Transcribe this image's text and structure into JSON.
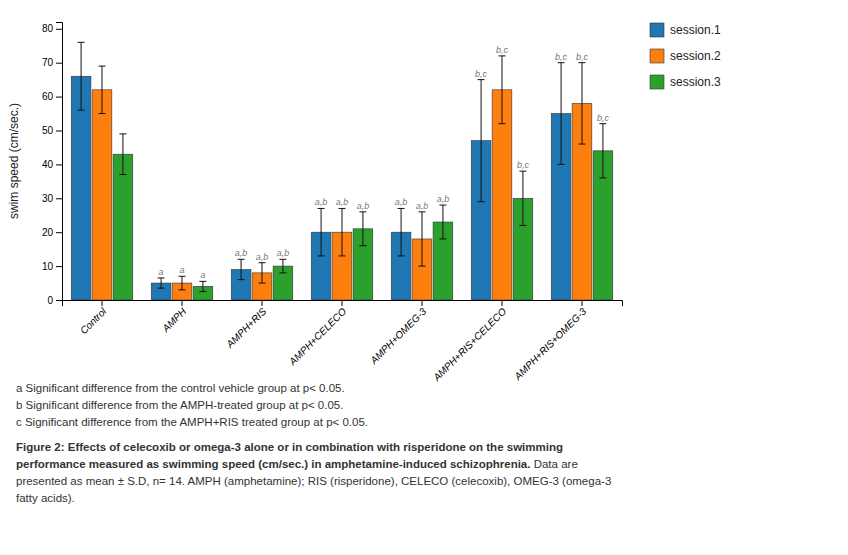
{
  "chart_data": {
    "type": "bar",
    "categories": [
      "Control",
      "AMPH",
      "AMPH+RIS",
      "AMPH+CELECO",
      "AMPH+OMEG-3",
      "AMPH+RIS+CELECO",
      "AMPH+RIS+OMEG-3"
    ],
    "ylabel": "swim speed (cm/sec.)",
    "ylim": [
      0,
      82
    ],
    "yticks": [
      0,
      10,
      20,
      30,
      40,
      50,
      60,
      70,
      80
    ],
    "series": [
      {
        "name": "session.1",
        "values": [
          66,
          5,
          9,
          20,
          20,
          47,
          55
        ],
        "errors": [
          10,
          1.5,
          3,
          7,
          7,
          18,
          15
        ],
        "annotations": [
          null,
          "a",
          "a,b",
          "a,b",
          "a,b",
          "b,c",
          "b,c"
        ]
      },
      {
        "name": "session.2",
        "values": [
          62,
          5,
          8,
          20,
          18,
          62,
          58
        ],
        "errors": [
          7,
          2,
          3,
          7,
          8,
          10,
          12
        ],
        "annotations": [
          null,
          "a",
          "a,b",
          "a,b",
          "a,b",
          "b,c",
          "b,c"
        ]
      },
      {
        "name": "session.3",
        "values": [
          43,
          4,
          10,
          21,
          23,
          30,
          44
        ],
        "errors": [
          6,
          1.5,
          2,
          5,
          5,
          8,
          8
        ],
        "annotations": [
          null,
          "a",
          "a,b",
          "a,b",
          "a,b",
          "b,c",
          "b,c"
        ]
      }
    ],
    "footnotes": [
      "a Significant difference from the control vehicle group at p< 0.05.",
      "b Significant difference from the AMPH-treated group at p< 0.05.",
      "c Significant difference from the AMPH+RIS treated group at p< 0.05."
    ],
    "caption_bold": [
      "Figure 2: Effects of celecoxib or omega-3 alone or in combination with risperidone on the swimming",
      "performance measured as swimming speed (cm/sec.) in amphetamine-induced schizophrenia."
    ],
    "caption": [
      "Data are",
      "presented as mean ± S.D, n= 14. AMPH (amphetamine); RIS (risperidone), CELECO (celecoxib), OMEG-3 (omega-3",
      "fatty acids)."
    ]
  }
}
